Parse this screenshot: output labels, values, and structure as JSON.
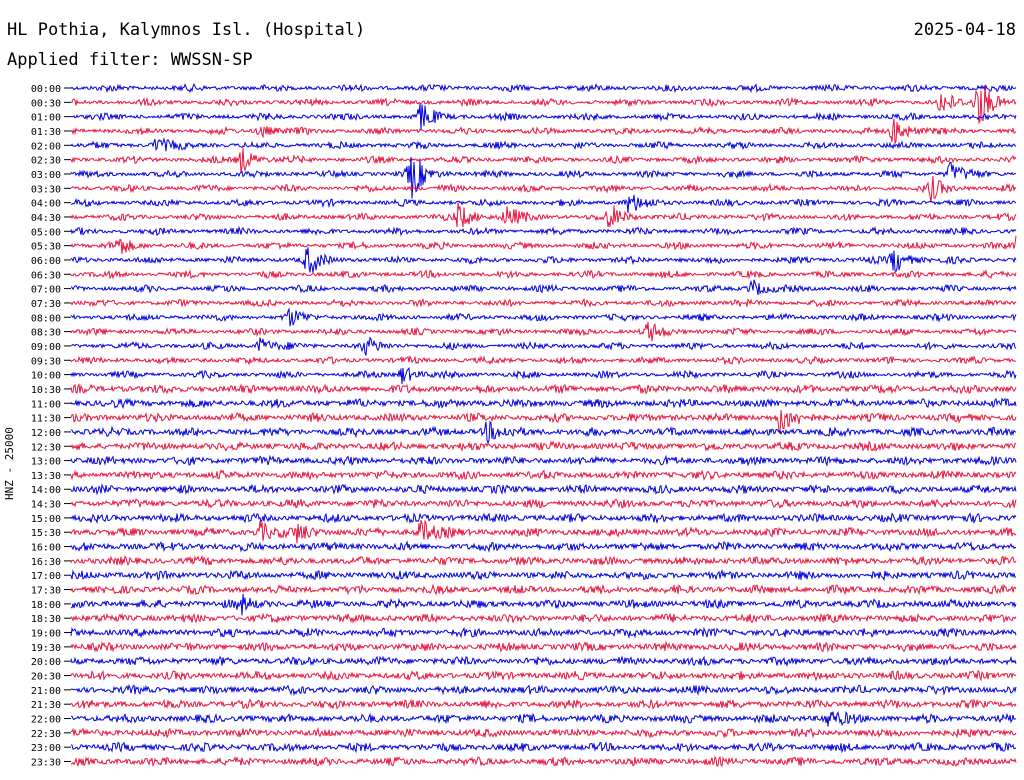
{
  "header": {
    "station": "HL Pothia, Kalymnos Isl. (Hospital)",
    "date": "2025-04-18",
    "filter": "Applied filter: WWSSN-SP"
  },
  "side_label": "HNZ - 25000",
  "colors": {
    "odd_trace": "#0000e0",
    "even_trace": "#e8153f",
    "text": "#000000"
  },
  "chart_data": {
    "type": "line",
    "title": "HL Pothia, Kalymnos Isl. (Hospital)",
    "subtitle": "Applied filter: WWSSN-SP",
    "ylabel": "HNZ - 25000",
    "grid": false,
    "rows": [
      "00:00",
      "00:30",
      "01:00",
      "01:30",
      "02:00",
      "02:30",
      "03:00",
      "03:30",
      "04:00",
      "04:30",
      "05:00",
      "05:30",
      "06:00",
      "06:30",
      "07:00",
      "07:30",
      "08:00",
      "08:30",
      "09:00",
      "09:30",
      "10:00",
      "10:30",
      "11:00",
      "11:30",
      "12:00",
      "12:30",
      "13:00",
      "13:30",
      "14:00",
      "14:30",
      "15:00",
      "15:30",
      "16:00",
      "16:30",
      "17:00",
      "17:30",
      "18:00",
      "18:30",
      "19:00",
      "19:30",
      "20:00",
      "20:30",
      "21:00",
      "21:30",
      "22:00",
      "22:30",
      "23:00",
      "23:30"
    ],
    "events": [
      {
        "row": 1,
        "pos": 0.96,
        "amp": 2.2
      },
      {
        "row": 1,
        "pos": 0.92,
        "amp": 0.8
      },
      {
        "row": 2,
        "pos": 0.37,
        "amp": 1.0
      },
      {
        "row": 3,
        "pos": 0.2,
        "amp": 0.5
      },
      {
        "row": 3,
        "pos": 0.87,
        "amp": 1.2
      },
      {
        "row": 4,
        "pos": 0.09,
        "amp": 0.6
      },
      {
        "row": 5,
        "pos": 0.18,
        "amp": 1.0
      },
      {
        "row": 6,
        "pos": 0.36,
        "amp": 1.8
      },
      {
        "row": 6,
        "pos": 0.93,
        "amp": 0.9
      },
      {
        "row": 7,
        "pos": 0.91,
        "amp": 0.8
      },
      {
        "row": 8,
        "pos": 0.59,
        "amp": 0.8
      },
      {
        "row": 9,
        "pos": 0.41,
        "amp": 1.1
      },
      {
        "row": 9,
        "pos": 0.46,
        "amp": 0.8
      },
      {
        "row": 9,
        "pos": 0.57,
        "amp": 1.0
      },
      {
        "row": 11,
        "pos": 0.05,
        "amp": 0.7
      },
      {
        "row": 11,
        "pos": 1.0,
        "amp": 0.6
      },
      {
        "row": 12,
        "pos": 0.25,
        "amp": 1.1
      },
      {
        "row": 12,
        "pos": 0.87,
        "amp": 1.1
      },
      {
        "row": 14,
        "pos": 0.72,
        "amp": 0.7
      },
      {
        "row": 16,
        "pos": 0.23,
        "amp": 0.6
      },
      {
        "row": 17,
        "pos": 0.61,
        "amp": 0.7
      },
      {
        "row": 18,
        "pos": 0.2,
        "amp": 0.6
      },
      {
        "row": 18,
        "pos": 0.31,
        "amp": 0.6
      },
      {
        "row": 20,
        "pos": 0.35,
        "amp": 0.7
      },
      {
        "row": 23,
        "pos": 0.75,
        "amp": 1.1
      },
      {
        "row": 24,
        "pos": 0.44,
        "amp": 0.8
      },
      {
        "row": 31,
        "pos": 0.2,
        "amp": 0.7
      },
      {
        "row": 31,
        "pos": 0.24,
        "amp": 0.7
      },
      {
        "row": 31,
        "pos": 0.37,
        "amp": 1.0
      },
      {
        "row": 36,
        "pos": 0.18,
        "amp": 0.6
      },
      {
        "row": 44,
        "pos": 0.8,
        "amp": 0.7
      }
    ]
  }
}
